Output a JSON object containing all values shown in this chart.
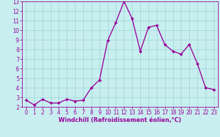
{
  "x": [
    0,
    1,
    2,
    3,
    4,
    5,
    6,
    7,
    8,
    9,
    10,
    11,
    12,
    13,
    14,
    15,
    16,
    17,
    18,
    19,
    20,
    21,
    22,
    23
  ],
  "y": [
    2.7,
    2.2,
    2.8,
    2.4,
    2.4,
    2.8,
    2.6,
    2.7,
    4.0,
    4.8,
    8.9,
    10.8,
    13.0,
    11.2,
    7.8,
    10.3,
    10.5,
    8.5,
    7.8,
    7.5,
    8.5,
    6.5,
    4.0,
    3.8
  ],
  "line_color": "#990099",
  "marker": "D",
  "marker_size": 2,
  "bg_color": "#c8eef0",
  "grid_color": "#a0d8d8",
  "xlabel": "Windchill (Refroidissement éolien,°C)",
  "xlabel_color": "#990099",
  "tick_color": "#990099",
  "ylim": [
    2,
    13
  ],
  "xlim": [
    -0.5,
    23.5
  ],
  "yticks": [
    2,
    3,
    4,
    5,
    6,
    7,
    8,
    9,
    10,
    11,
    12,
    13
  ],
  "xticks": [
    0,
    1,
    2,
    3,
    4,
    5,
    6,
    7,
    8,
    9,
    10,
    11,
    12,
    13,
    14,
    15,
    16,
    17,
    18,
    19,
    20,
    21,
    22,
    23
  ],
  "tick_fontsize": 5.5,
  "xlabel_fontsize": 6.0,
  "linewidth": 1.0
}
